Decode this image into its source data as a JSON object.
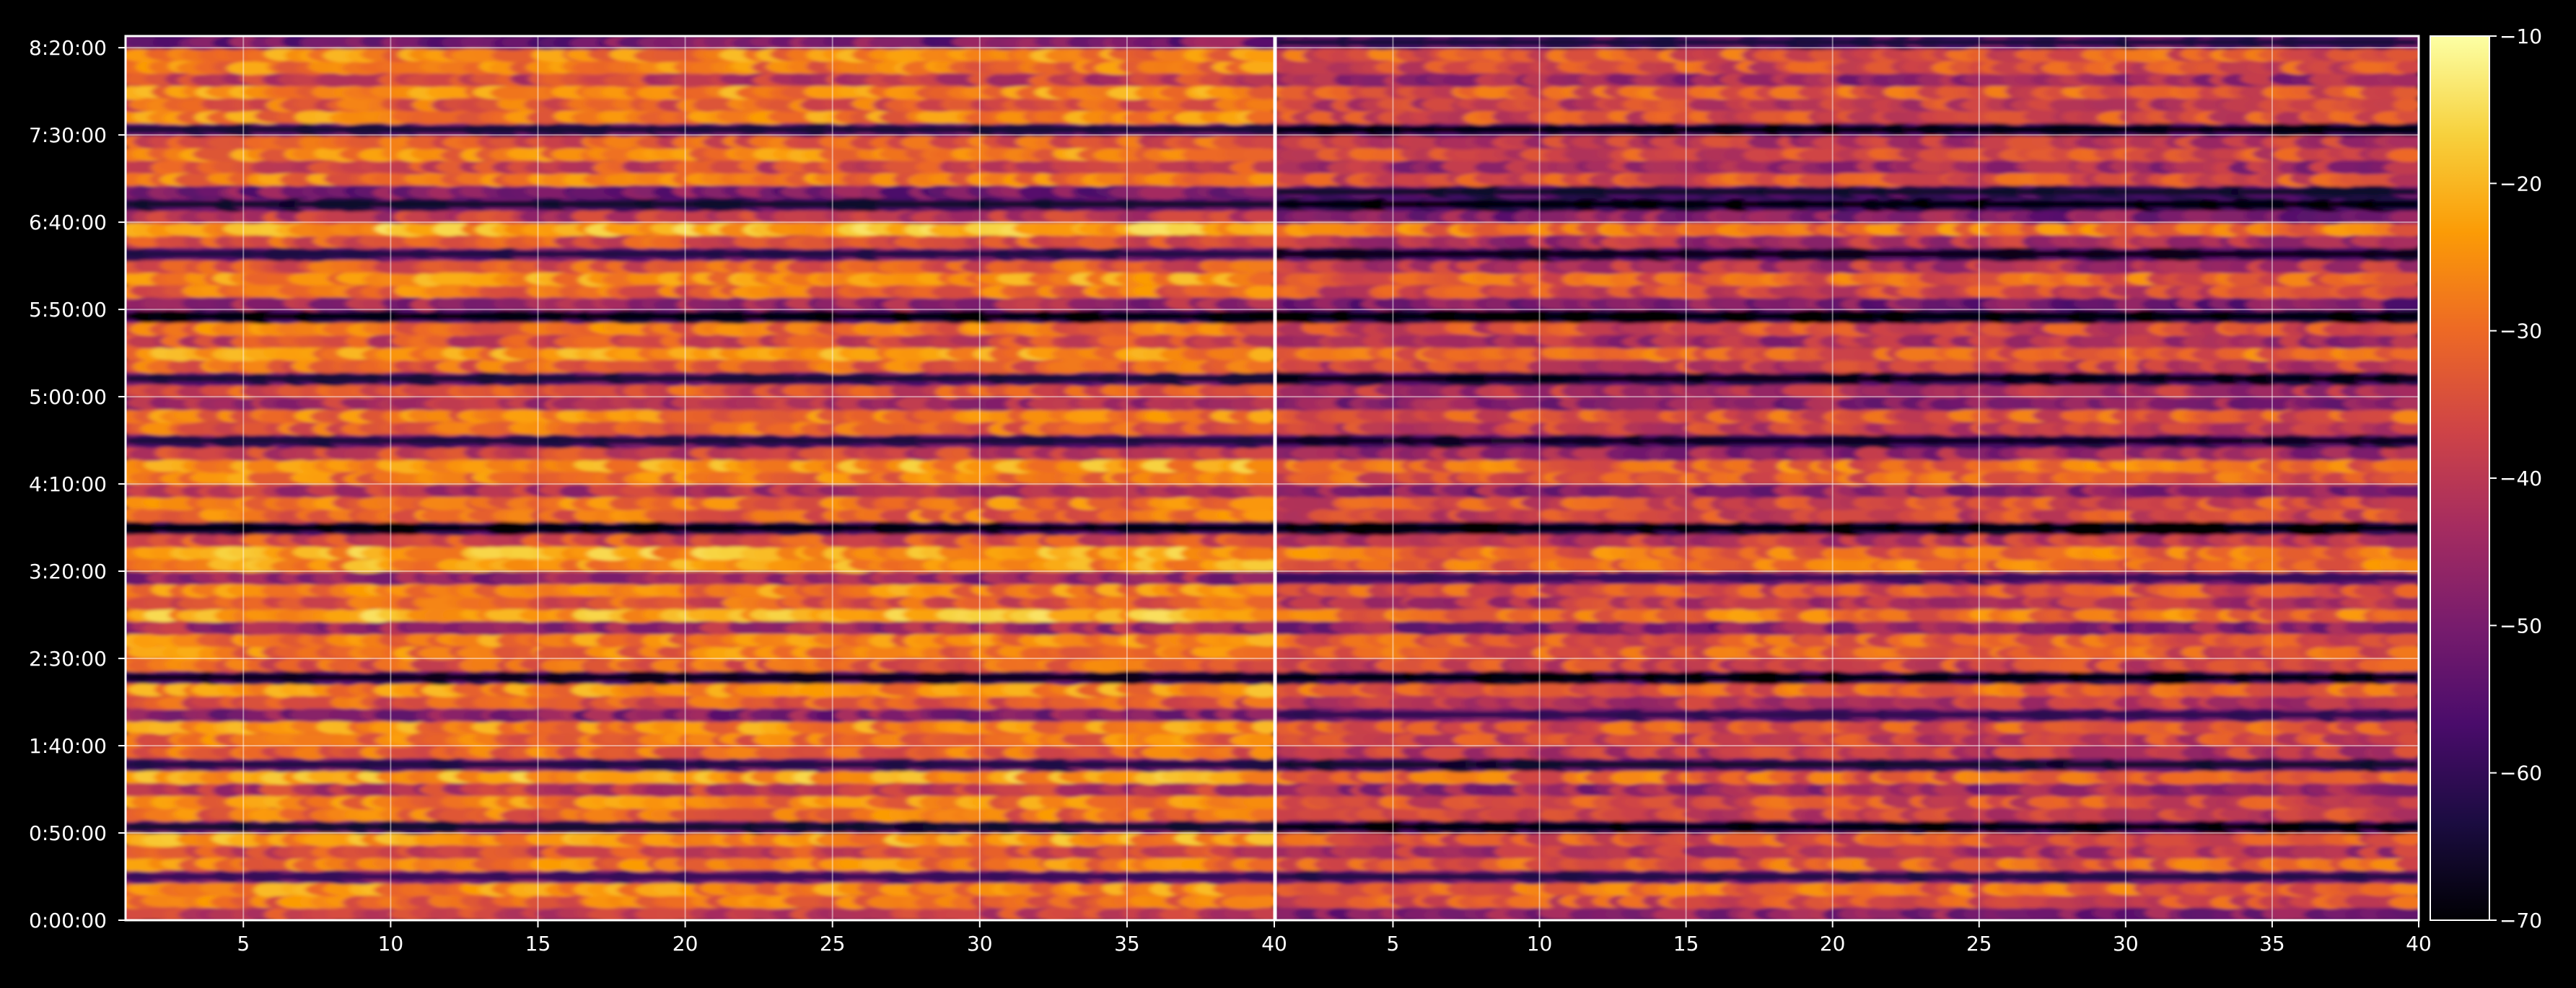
{
  "chart_data": {
    "type": "heatmap",
    "title": "",
    "panels": [
      {
        "name": "",
        "x_ticks": [
          "5",
          "10",
          "15",
          "20",
          "25",
          "30",
          "35",
          "40"
        ],
        "xlim": [
          1,
          40
        ]
      },
      {
        "name": "",
        "x_ticks": [
          "5",
          "10",
          "15",
          "20",
          "25",
          "30",
          "35",
          "40"
        ],
        "xlim": [
          1,
          40
        ]
      }
    ],
    "y_ticks": [
      "0:00:00",
      "0:50:00",
      "1:40:00",
      "2:30:00",
      "3:20:00",
      "4:10:00",
      "5:00:00",
      "5:50:00",
      "6:40:00",
      "7:30:00",
      "8:20:00"
    ],
    "y_tick_seconds": [
      0,
      3000,
      6000,
      9000,
      12000,
      15000,
      18000,
      21000,
      24000,
      27000,
      30000
    ],
    "ylim_seconds": [
      0,
      30400
    ],
    "colorbar": {
      "ticks": [
        "−10",
        "−20",
        "−30",
        "−40",
        "−50",
        "−60",
        "−70"
      ],
      "tick_values": [
        -10,
        -20,
        -30,
        -40,
        -50,
        -60,
        -70
      ],
      "range": [
        -70,
        -10
      ],
      "colormap_stops": [
        "#000004",
        "#1b0c41",
        "#4a0c6b",
        "#781c6d",
        "#a52c60",
        "#cf4446",
        "#ed6925",
        "#fb9b06",
        "#f7d13d",
        "#fcffa4"
      ]
    },
    "grid": true,
    "bands_db": {
      "left": [
        -38,
        -30,
        -26,
        -52,
        -28,
        -36,
        -24,
        -58,
        -30,
        -27,
        -40,
        -22,
        -55,
        -31,
        -29,
        -26,
        -48,
        -33,
        -25,
        -60,
        -32,
        -28,
        -27,
        -44,
        -21,
        -33,
        -27,
        -46,
        -24,
        -22,
        -35,
        -62,
        -30,
        -29,
        -41,
        -28,
        -23,
        -38,
        -56,
        -31,
        -28,
        -42,
        -35,
        -57,
        -31,
        -25,
        -36,
        -29,
        -62,
        -45,
        -30,
        -25,
        -33,
        -55,
        -34,
        -21,
        -40,
        -58,
        -50,
        -28,
        -36,
        -27,
        -33,
        -57,
        -27,
        -32,
        -26,
        -38,
        -28,
        -26,
        -50
      ],
      "right": [
        -48,
        -35,
        -31,
        -55,
        -32,
        -42,
        -33,
        -62,
        -38,
        -35,
        -45,
        -31,
        -58,
        -40,
        -37,
        -34,
        -53,
        -40,
        -32,
        -63,
        -36,
        -33,
        -33,
        -48,
        -29,
        -40,
        -34,
        -52,
        -30,
        -30,
        -40,
        -66,
        -36,
        -35,
        -47,
        -33,
        -30,
        -45,
        -59,
        -38,
        -33,
        -47,
        -42,
        -61,
        -38,
        -31,
        -43,
        -36,
        -66,
        -50,
        -36,
        -31,
        -41,
        -60,
        -42,
        -29,
        -48,
        -63,
        -58,
        -35,
        -44,
        -36,
        -40,
        -62,
        -35,
        -38,
        -33,
        -45,
        -35,
        -33,
        -56
      ]
    }
  }
}
